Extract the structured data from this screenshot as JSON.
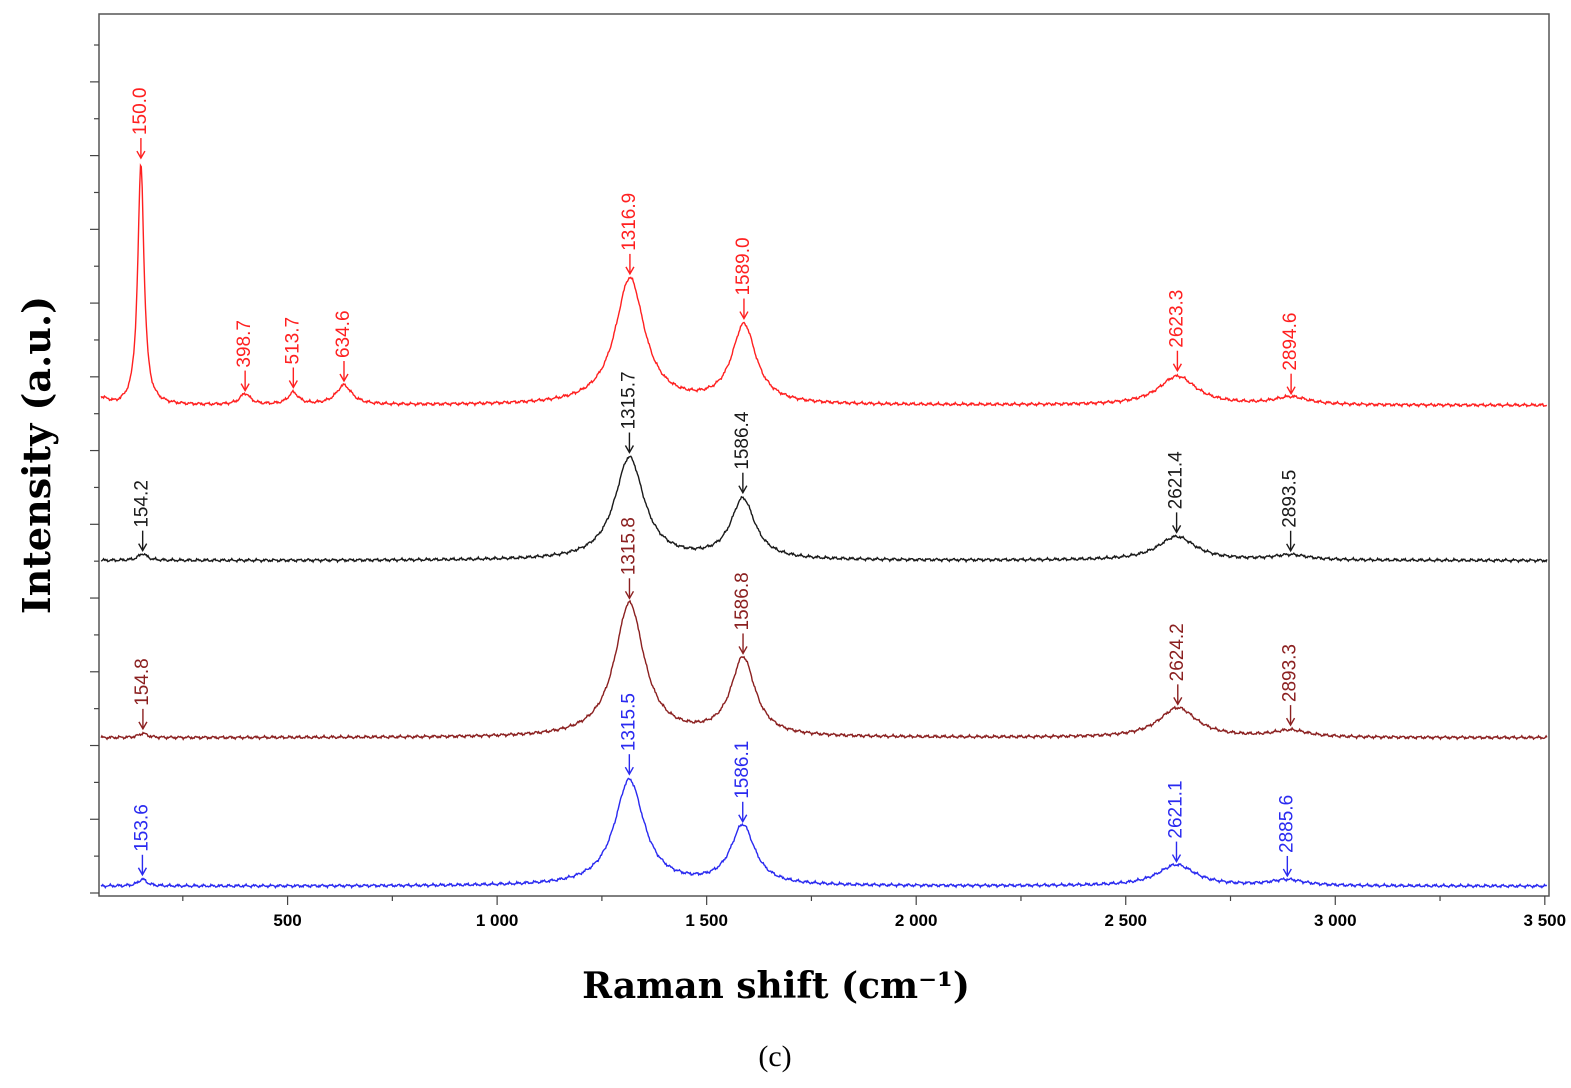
{
  "chart_data": {
    "type": "line",
    "title": "",
    "xlabel": "Raman shift (cm⁻¹)",
    "ylabel": "Intensity (a.u.)",
    "caption": "(c)",
    "xlim": [
      50,
      3510
    ],
    "ylim": [
      0,
      100
    ],
    "grid": false,
    "x_ticks": [
      {
        "value": 500,
        "label": "500"
      },
      {
        "value": 1000,
        "label": "1 000"
      },
      {
        "value": 1500,
        "label": "1 500"
      },
      {
        "value": 2000,
        "label": "2 000"
      },
      {
        "value": 2500,
        "label": "2 500"
      },
      {
        "value": 3000,
        "label": "3 000"
      },
      {
        "value": 3500,
        "label": "3 500"
      }
    ],
    "series": [
      {
        "name": "red",
        "color": "#ff2020",
        "baseline": 57.5,
        "peaks": [
          {
            "x": 150.0,
            "height": 28.5,
            "width": 18,
            "label": "150.0"
          },
          {
            "x": 398.7,
            "height": 1.3,
            "width": 30,
            "label": "398.7"
          },
          {
            "x": 513.7,
            "height": 1.4,
            "width": 30,
            "label": "513.7"
          },
          {
            "x": 634.6,
            "height": 2.3,
            "width": 45,
            "label": "634.6"
          },
          {
            "x": 1316.9,
            "height": 14.9,
            "width": 85,
            "label": "1316.9"
          },
          {
            "x": 1589.0,
            "height": 9.3,
            "width": 70,
            "label": "1589.0"
          },
          {
            "x": 2623.3,
            "height": 3.4,
            "width": 110,
            "label": "2623.3"
          },
          {
            "x": 2894.6,
            "height": 0.9,
            "width": 100,
            "label": "2894.6"
          }
        ]
      },
      {
        "name": "black",
        "color": "#1a1a1a",
        "baseline": 39.2,
        "peaks": [
          {
            "x": 154.2,
            "height": 0.8,
            "width": 25,
            "label": "154.2"
          },
          {
            "x": 1315.7,
            "height": 12.1,
            "width": 85,
            "label": "1315.7"
          },
          {
            "x": 1586.4,
            "height": 7.1,
            "width": 70,
            "label": "1586.4"
          },
          {
            "x": 2621.4,
            "height": 2.8,
            "width": 110,
            "label": "2621.4"
          },
          {
            "x": 2893.5,
            "height": 0.6,
            "width": 100,
            "label": "2893.5"
          }
        ]
      },
      {
        "name": "dark-red",
        "color": "#8b2020",
        "baseline": 18.3,
        "peaks": [
          {
            "x": 154.8,
            "height": 0.5,
            "width": 25,
            "label": "154.8"
          },
          {
            "x": 1315.8,
            "height": 15.8,
            "width": 85,
            "label": "1315.8"
          },
          {
            "x": 1586.8,
            "height": 9.2,
            "width": 70,
            "label": "1586.8"
          },
          {
            "x": 2624.2,
            "height": 3.5,
            "width": 110,
            "label": "2624.2"
          },
          {
            "x": 2893.3,
            "height": 0.8,
            "width": 100,
            "label": "2893.3"
          }
        ]
      },
      {
        "name": "blue",
        "color": "#2a2af0",
        "baseline": 0.8,
        "peaks": [
          {
            "x": 153.6,
            "height": 0.8,
            "width": 25,
            "label": "153.6"
          },
          {
            "x": 1315.5,
            "height": 12.5,
            "width": 85,
            "label": "1315.5"
          },
          {
            "x": 1586.1,
            "height": 7.0,
            "width": 70,
            "label": "1586.1"
          },
          {
            "x": 2621.1,
            "height": 2.5,
            "width": 110,
            "label": "2621.1"
          },
          {
            "x": 2885.6,
            "height": 0.7,
            "width": 100,
            "label": "2885.6"
          }
        ]
      }
    ]
  }
}
